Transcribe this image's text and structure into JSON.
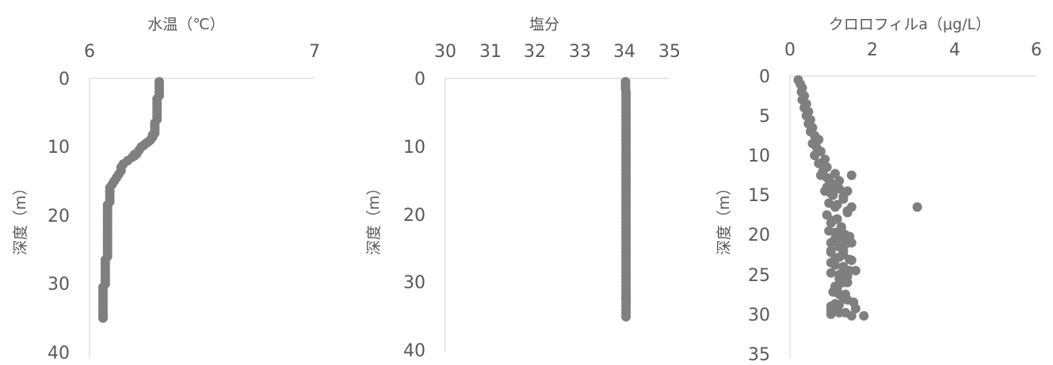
{
  "chart_data": [
    {
      "type": "scatter",
      "title": "水温（℃）",
      "xlabel": "",
      "ylabel": "深度（m）",
      "xlim": [
        6,
        7
      ],
      "ylim": [
        0,
        40
      ],
      "y_reversed": true,
      "x_ticks": [
        "6",
        "7"
      ],
      "y_ticks": [
        "0",
        "10",
        "20",
        "30",
        "40"
      ],
      "marker_color": "#7f7f7f",
      "series": [
        {
          "x": [
            6.31,
            6.31,
            6.31,
            6.31,
            6.31,
            6.3,
            6.3,
            6.3,
            6.3,
            6.3,
            6.3,
            6.3,
            6.29,
            6.29,
            6.29,
            6.29,
            6.28,
            6.28,
            6.27,
            6.26,
            6.25,
            6.24,
            6.23,
            6.22,
            6.21,
            6.2,
            6.2,
            6.19,
            6.17,
            6.15,
            6.14,
            6.14,
            6.13,
            6.12,
            6.11,
            6.1,
            6.09,
            6.09,
            6.09,
            6.09,
            6.09,
            6.08,
            6.08,
            6.08,
            6.08,
            6.08,
            6.08,
            6.08,
            6.08,
            6.08,
            6.08,
            6.08,
            6.08,
            6.08,
            6.08,
            6.08,
            6.08,
            6.07,
            6.07,
            6.07,
            6.07,
            6.07,
            6.07,
            6.07,
            6.07,
            6.06,
            6.06,
            6.06,
            6.06,
            6.06,
            6.06,
            6.06,
            6.06,
            6.06,
            6.06,
            6.06
          ],
          "y": [
            0.5,
            1,
            1.5,
            2,
            2.5,
            3,
            3.5,
            4,
            4.5,
            5,
            5.5,
            6,
            6.5,
            7,
            7.5,
            8,
            8.3,
            8.6,
            9,
            9.3,
            9.5,
            9.8,
            10,
            10.5,
            11,
            11.1,
            11.3,
            11.5,
            12,
            12.5,
            13,
            13.5,
            14,
            14.5,
            15,
            15.5,
            16,
            16.5,
            17,
            17.5,
            18,
            18.5,
            19,
            19.5,
            20,
            20.5,
            21,
            21.5,
            22,
            22.5,
            23,
            23.5,
            24,
            24.5,
            25,
            25.5,
            26,
            26.5,
            27,
            27.5,
            28,
            28.5,
            29,
            29.5,
            30,
            30.5,
            31,
            31.5,
            32,
            32.5,
            33,
            33.5,
            34,
            34.5,
            34.8,
            35
          ]
        }
      ]
    },
    {
      "type": "scatter",
      "title": "塩分",
      "xlabel": "",
      "ylabel": "深度（m）",
      "xlim": [
        30,
        35
      ],
      "ylim": [
        0,
        40
      ],
      "y_reversed": true,
      "x_ticks": [
        "30",
        "31",
        "32",
        "33",
        "34",
        "35"
      ],
      "y_ticks": [
        "0",
        "10",
        "20",
        "30",
        "40"
      ],
      "marker_color": "#7f7f7f",
      "series": [
        {
          "x": [
            34.02,
            34.02,
            34.02,
            34.03,
            34.03,
            34.03,
            34.03,
            34.03,
            34.03,
            34.03,
            34.03,
            34.03,
            34.03,
            34.03,
            34.03,
            34.03,
            34.03,
            34.03,
            34.03,
            34.03,
            34.03,
            34.03,
            34.03,
            34.03,
            34.03,
            34.03,
            34.03,
            34.03,
            34.03,
            34.03,
            34.03,
            34.03,
            34.03,
            34.03,
            34.03,
            34.03,
            34.03,
            34.03,
            34.03,
            34.03,
            34.03,
            34.03,
            34.03,
            34.03,
            34.03,
            34.03,
            34.03,
            34.03,
            34.03,
            34.03,
            34.03,
            34.03,
            34.03,
            34.03,
            34.03,
            34.03,
            34.03,
            34.03,
            34.03,
            34.03,
            34.03,
            34.03,
            34.03,
            34.03,
            34.03,
            34.03,
            34.03,
            34.03,
            34.03,
            34.03,
            34.03
          ],
          "y": [
            0.5,
            1,
            1.5,
            2,
            2.5,
            3,
            3.5,
            4,
            4.5,
            5,
            5.5,
            6,
            6.5,
            7,
            7.5,
            8,
            8.5,
            9,
            9.5,
            10,
            10.5,
            11,
            11.5,
            12,
            12.5,
            13,
            13.5,
            14,
            14.5,
            15,
            15.5,
            16,
            16.5,
            17,
            17.5,
            18,
            18.5,
            19,
            19.5,
            20,
            20.5,
            21,
            21.5,
            22,
            22.5,
            23,
            23.5,
            24,
            24.5,
            25,
            25.5,
            26,
            26.5,
            27,
            27.5,
            28,
            28.5,
            29,
            29.5,
            30,
            30.5,
            31,
            31.5,
            32,
            32.3,
            32.5,
            33,
            33.5,
            34,
            34.5,
            35
          ]
        }
      ]
    },
    {
      "type": "scatter",
      "title": "クロロフィルa（μg/L）",
      "xlabel": "",
      "ylabel": "深度（m）",
      "xlim": [
        0,
        6
      ],
      "ylim": [
        0,
        35
      ],
      "y_reversed": true,
      "x_ticks": [
        "0",
        "2",
        "4",
        "6"
      ],
      "y_ticks": [
        "0",
        "5",
        "10",
        "15",
        "20",
        "25",
        "30",
        "35"
      ],
      "marker_color": "#7f7f7f",
      "series": [
        {
          "x": [
            0.2,
            0.25,
            0.3,
            0.28,
            0.35,
            0.3,
            0.4,
            0.35,
            0.45,
            0.4,
            0.5,
            0.45,
            0.55,
            0.5,
            0.6,
            0.7,
            0.55,
            0.65,
            0.75,
            0.6,
            0.85,
            0.7,
            0.9,
            0.8,
            1.1,
            0.75,
            0.95,
            1.0,
            0.9,
            1.2,
            0.85,
            1.05,
            1.3,
            0.95,
            1.1,
            1.4,
            0.9,
            1.15,
            1.0,
            1.25,
            0.95,
            1.35,
            1.1,
            1.0,
            1.2,
            1.3,
            3.1,
            1.5,
            1.1,
            0.9,
            1.2,
            1.0,
            1.3,
            1.15,
            1.4,
            1.05,
            1.25,
            1.45,
            1.1,
            1.35,
            1.0,
            1.2,
            1.5,
            1.1,
            1.3,
            1.0,
            1.4,
            1.25,
            1.2,
            1.15,
            1.05,
            1.3,
            1.4,
            1.2,
            1.1,
            1.35,
            1.0,
            1.25,
            1.5,
            1.1,
            1.3,
            1.0,
            1.45,
            1.2,
            1.1,
            1.35,
            1.55,
            1.0,
            1.2,
            1.4,
            1.1,
            1.3,
            1.0,
            1.2,
            1.5,
            1.1,
            1.3,
            1.0,
            1.2,
            1.4,
            1.8,
            1.6,
            1.45,
            1.5,
            1.4,
            1.6,
            1.3,
            1.2,
            1.1
          ],
          "y": [
            0.5,
            1,
            1.5,
            2,
            2.5,
            3,
            3.5,
            4,
            4.5,
            5,
            5.5,
            6,
            6.5,
            7,
            7.5,
            8,
            8.5,
            9,
            9.5,
            10,
            10.5,
            11,
            11.5,
            12,
            12.3,
            12.5,
            13,
            13.5,
            14,
            14.2,
            14.5,
            15,
            15.5,
            16,
            16.5,
            17,
            17.5,
            18,
            18.5,
            19,
            19.5,
            20,
            20.5,
            21,
            21.5,
            22,
            16.5,
            16.5,
            13.8,
            12.8,
            13.2,
            14.8,
            15.2,
            16.2,
            17.2,
            18.2,
            19.2,
            20.2,
            20.8,
            21.2,
            22.2,
            22.8,
            23.2,
            23.8,
            24.2,
            24.8,
            25.2,
            25.8,
            26.2,
            26.8,
            27.2,
            27.8,
            28.2,
            28.8,
            29.2,
            29.8,
            30,
            20.3,
            21,
            19.7,
            22.5,
            23.5,
            24.5,
            25.5,
            26.5,
            27.5,
            28.5,
            29.5,
            25,
            26,
            27,
            28,
            29,
            29.8,
            30.2,
            23,
            24,
            22,
            21.5,
            20.9,
            30.2,
            24.5,
            23.1,
            12.5,
            14.5,
            29.3,
            26,
            27.5,
            28.7
          ]
        }
      ]
    }
  ]
}
